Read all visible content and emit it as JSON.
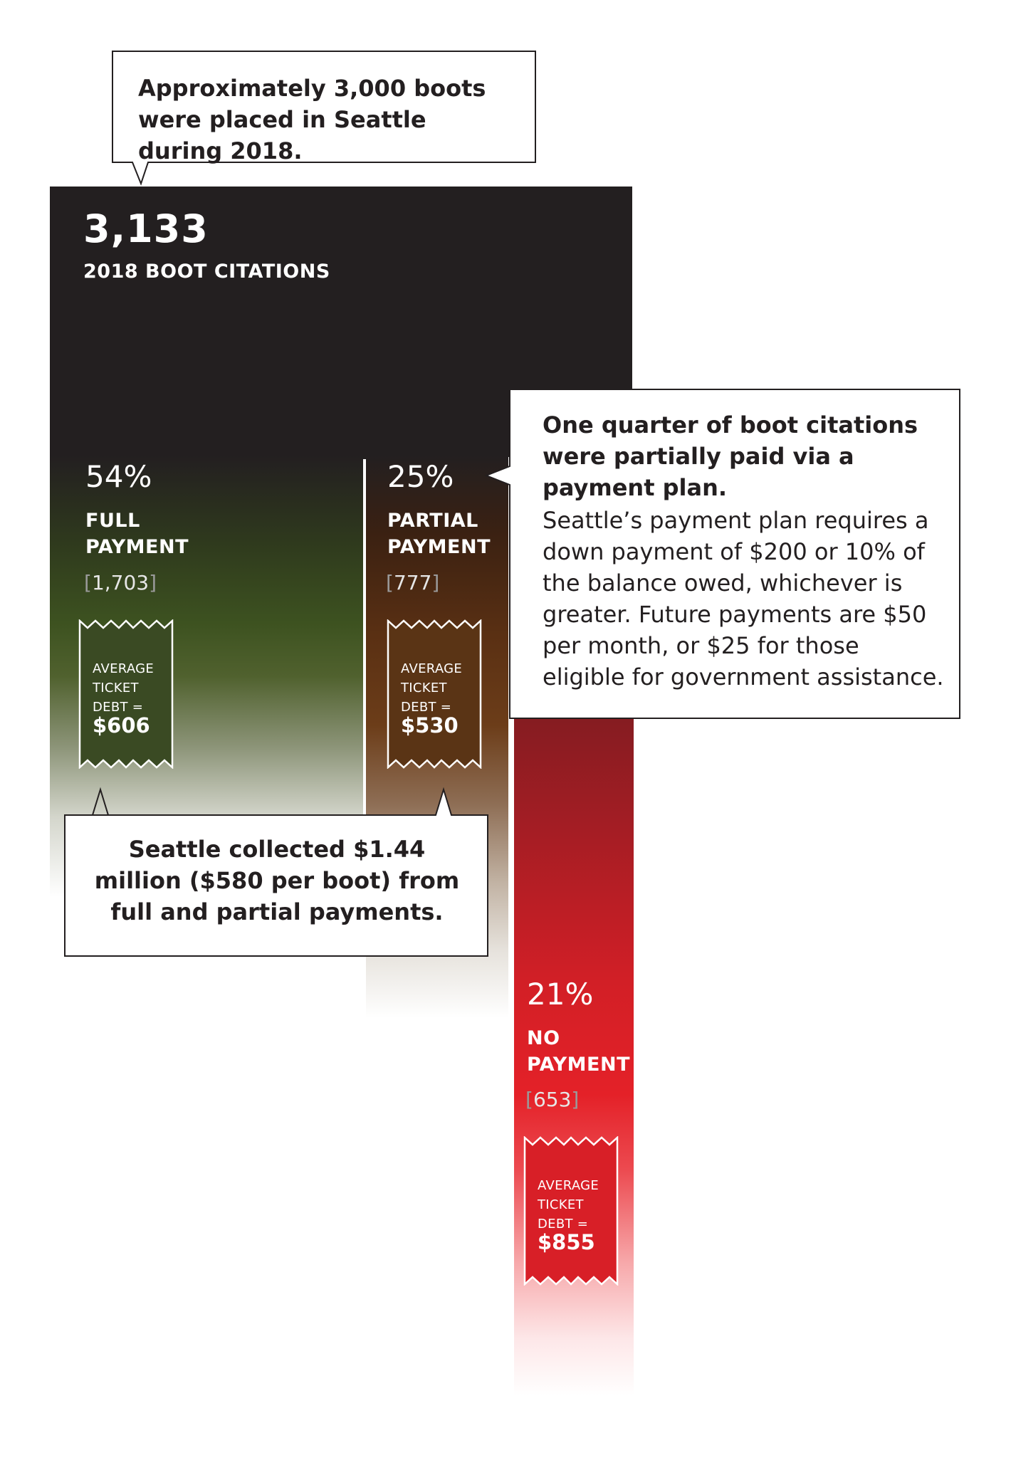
{
  "top_callout": "Approximately 3,000 boots were placed in Seattle during 2018.",
  "total": {
    "value": "3,133",
    "label": "2018 BOOT CITATIONS"
  },
  "branches": [
    {
      "pct": "54%",
      "label_line1": "FULL",
      "label_line2": "PAYMENT",
      "count": "1,703",
      "ticket_line1": "AVERAGE",
      "ticket_line2": "TICKET",
      "ticket_line3": "DEBT =",
      "ticket_amount": "$606",
      "color": "#3d5220"
    },
    {
      "pct": "25%",
      "label_line1": "PARTIAL",
      "label_line2": "PAYMENT",
      "count": "777",
      "ticket_line1": "AVERAGE",
      "ticket_line2": "TICKET",
      "ticket_line3": "DEBT =",
      "ticket_amount": "$530",
      "color": "#6c3d19"
    },
    {
      "pct": "21%",
      "label_line1": "NO",
      "label_line2": "PAYMENT",
      "count": "653",
      "ticket_line1": "AVERAGE",
      "ticket_line2": "TICKET",
      "ticket_line3": "DEBT =",
      "ticket_amount": "$855",
      "color": "#e42128"
    }
  ],
  "right_callout": {
    "heading": "One quarter of boot citations were partially paid via a payment plan.",
    "body": "Seattle’s payment plan requires a down payment of $200 or 10% of the balance owed, whichever is greater. Future payments are $50 per month, or $25 for those eligible for government assistance."
  },
  "bottom_callout": "Seattle collected $1.44 million ($580 per boot) from full and partial payments."
}
